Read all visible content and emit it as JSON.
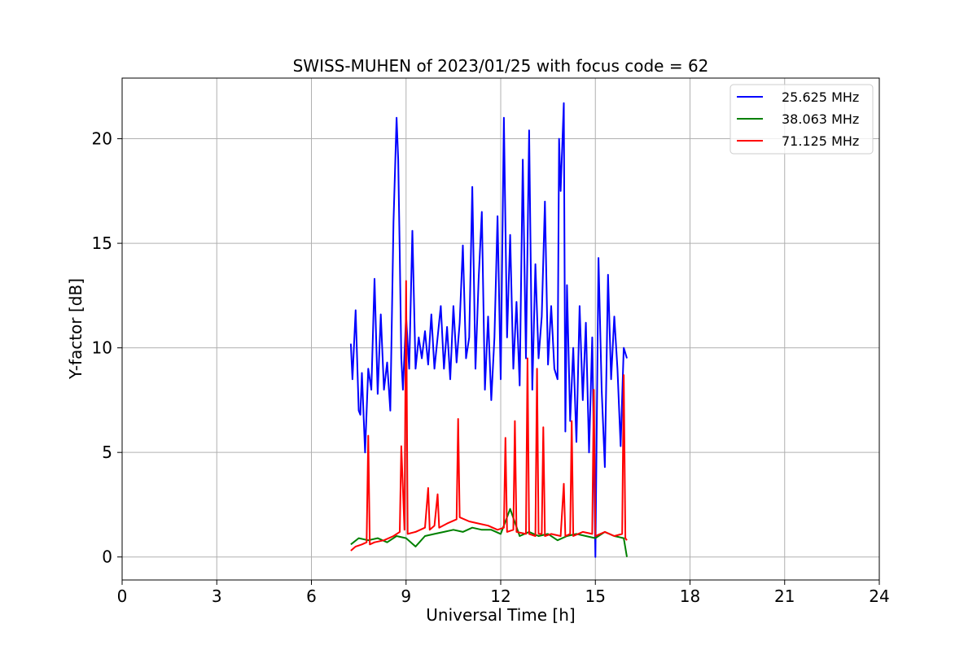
{
  "chart_data": {
    "type": "line",
    "title": "SWISS-MUHEN of 2023/01/25 with focus code = 62",
    "xlabel": "Universal Time [h]",
    "ylabel": "Y-factor [dB]",
    "xlim": [
      0,
      24
    ],
    "ylim": [
      -1.1,
      22.9
    ],
    "xticks": [
      0,
      3,
      6,
      9,
      12,
      15,
      18,
      21,
      24
    ],
    "yticks": [
      0,
      5,
      10,
      15,
      20
    ],
    "grid": true,
    "legend_position": "top-right",
    "series": [
      {
        "name": "25.625 MHz",
        "color": "#0000ff",
        "x": [
          7.25,
          7.3,
          7.4,
          7.5,
          7.55,
          7.6,
          7.7,
          7.8,
          7.9,
          8.0,
          8.1,
          8.2,
          8.3,
          8.4,
          8.5,
          8.6,
          8.65,
          8.7,
          8.75,
          8.8,
          8.85,
          8.9,
          9.0,
          9.1,
          9.2,
          9.3,
          9.4,
          9.5,
          9.6,
          9.7,
          9.8,
          9.9,
          10.0,
          10.1,
          10.2,
          10.3,
          10.4,
          10.5,
          10.6,
          10.7,
          10.8,
          10.9,
          11.0,
          11.1,
          11.2,
          11.3,
          11.4,
          11.5,
          11.6,
          11.7,
          11.8,
          11.9,
          12.0,
          12.1,
          12.2,
          12.3,
          12.4,
          12.5,
          12.6,
          12.7,
          12.8,
          12.9,
          13.0,
          13.1,
          13.2,
          13.3,
          13.4,
          13.5,
          13.6,
          13.7,
          13.8,
          13.85,
          13.9,
          14.0,
          14.05,
          14.1,
          14.2,
          14.3,
          14.4,
          14.5,
          14.6,
          14.7,
          14.8,
          14.9,
          15.0,
          15.1,
          15.2,
          15.3,
          15.4,
          15.5,
          15.6,
          15.7,
          15.8,
          15.9,
          16.0
        ],
        "values": [
          10.2,
          8.5,
          11.8,
          7.0,
          6.8,
          8.8,
          5.0,
          9.0,
          8.0,
          13.3,
          7.8,
          11.6,
          8.0,
          9.3,
          7.0,
          16.0,
          18.5,
          21.0,
          19.0,
          14.5,
          9.5,
          8.0,
          11.5,
          9.0,
          15.6,
          9.0,
          10.5,
          9.5,
          10.8,
          9.2,
          11.6,
          9.0,
          10.5,
          12.0,
          9.0,
          11.0,
          8.5,
          12.0,
          9.3,
          11.2,
          14.9,
          9.5,
          10.5,
          17.7,
          9.0,
          13.3,
          16.5,
          8.0,
          11.5,
          7.5,
          10.5,
          16.3,
          8.5,
          21.0,
          10.5,
          15.4,
          9.0,
          12.2,
          8.2,
          19.0,
          9.5,
          20.4,
          8.0,
          14.0,
          9.5,
          11.5,
          17.0,
          9.2,
          12.0,
          9.0,
          8.5,
          20.0,
          17.5,
          21.7,
          6.0,
          13.0,
          6.5,
          10.0,
          5.5,
          12.0,
          7.5,
          11.2,
          5.0,
          10.5,
          0.0,
          14.3,
          8.0,
          4.3,
          13.5,
          8.5,
          11.5,
          9.0,
          5.3,
          10.0,
          9.5
        ]
      },
      {
        "name": "38.063 MHz",
        "color": "#008000",
        "x": [
          7.25,
          7.5,
          7.8,
          8.1,
          8.4,
          8.7,
          9.0,
          9.3,
          9.6,
          9.9,
          10.2,
          10.5,
          10.8,
          11.1,
          11.4,
          11.7,
          12.0,
          12.3,
          12.6,
          12.9,
          13.2,
          13.5,
          13.8,
          14.1,
          14.4,
          14.7,
          15.0,
          15.3,
          15.6,
          15.9,
          16.0
        ],
        "values": [
          0.6,
          0.9,
          0.8,
          0.9,
          0.7,
          1.0,
          0.9,
          0.5,
          1.0,
          1.1,
          1.2,
          1.3,
          1.2,
          1.4,
          1.3,
          1.3,
          1.1,
          2.3,
          1.0,
          1.2,
          1.0,
          1.1,
          0.8,
          1.0,
          1.1,
          1.0,
          0.9,
          1.2,
          1.0,
          0.9,
          0.0
        ]
      },
      {
        "name": "71.125 MHz",
        "color": "#ff0000",
        "x": [
          7.25,
          7.4,
          7.6,
          7.75,
          7.8,
          7.85,
          8.0,
          8.3,
          8.6,
          8.8,
          8.85,
          8.95,
          9.0,
          9.05,
          9.3,
          9.6,
          9.7,
          9.75,
          9.9,
          10.0,
          10.05,
          10.3,
          10.6,
          10.65,
          10.7,
          11.0,
          11.3,
          11.6,
          11.9,
          12.1,
          12.15,
          12.2,
          12.4,
          12.45,
          12.5,
          12.8,
          12.85,
          12.9,
          13.1,
          13.15,
          13.2,
          13.3,
          13.35,
          13.4,
          13.6,
          13.9,
          14.0,
          14.05,
          14.2,
          14.25,
          14.3,
          14.6,
          14.9,
          14.95,
          15.0,
          15.3,
          15.6,
          15.85,
          15.9,
          15.95,
          16.0
        ],
        "values": [
          0.3,
          0.5,
          0.6,
          0.7,
          5.8,
          0.6,
          0.7,
          0.8,
          1.0,
          1.2,
          5.3,
          1.3,
          13.2,
          1.1,
          1.2,
          1.4,
          3.3,
          1.3,
          1.5,
          3.0,
          1.4,
          1.6,
          1.8,
          6.6,
          1.9,
          1.7,
          1.6,
          1.5,
          1.3,
          1.4,
          5.7,
          1.2,
          1.3,
          6.5,
          1.2,
          1.1,
          9.5,
          1.1,
          1.0,
          9.0,
          1.1,
          1.1,
          6.2,
          1.0,
          1.1,
          1.0,
          3.5,
          1.0,
          1.1,
          6.5,
          1.0,
          1.2,
          1.1,
          8.0,
          1.0,
          1.2,
          1.0,
          1.1,
          8.7,
          0.9,
          0.8
        ]
      }
    ]
  }
}
